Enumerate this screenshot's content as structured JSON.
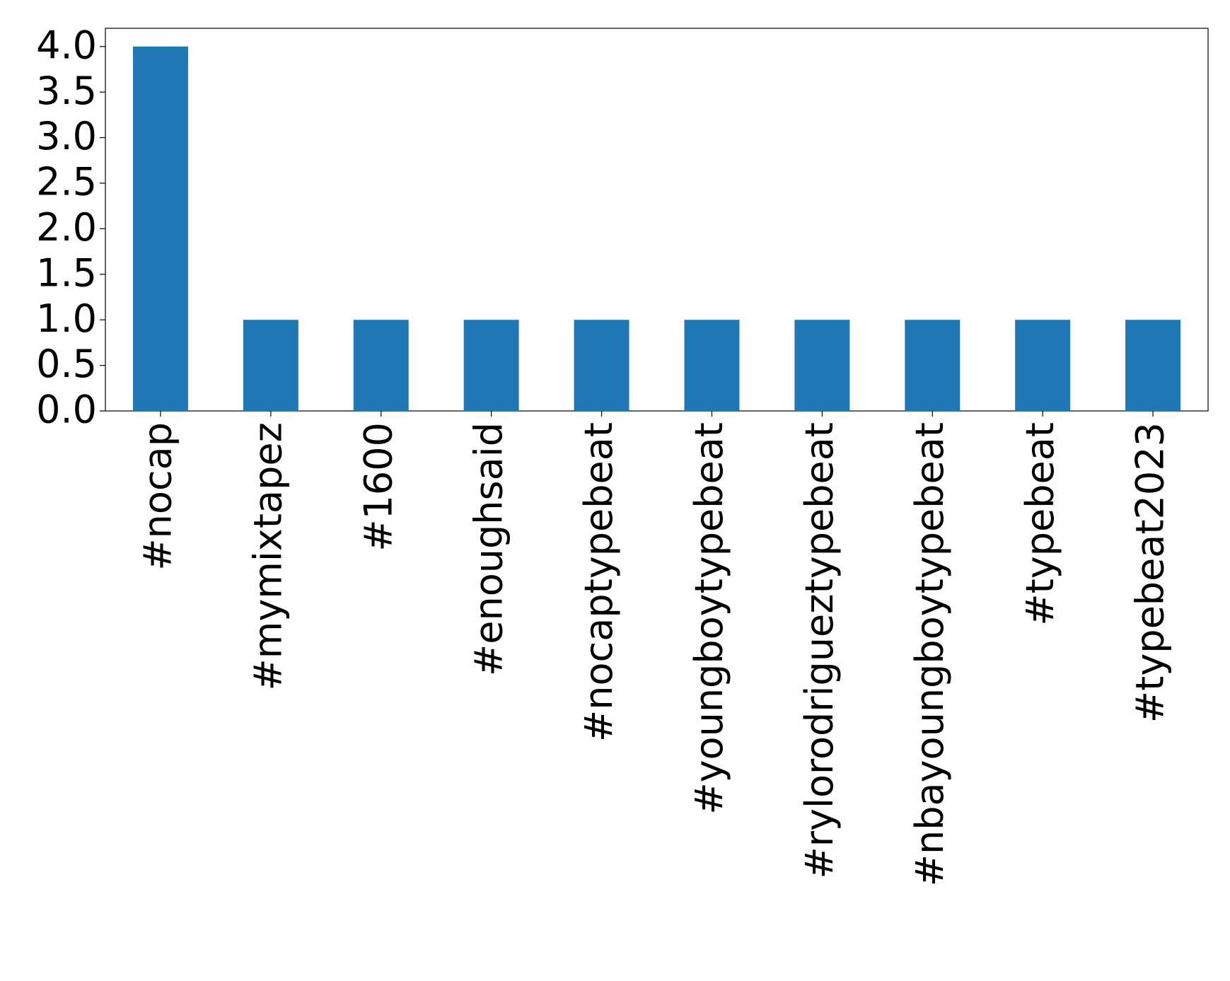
{
  "chart_data": {
    "type": "bar",
    "categories": [
      "#nocap",
      "#mymixtapez",
      "#1600",
      "#enoughsaid",
      "#nocaptypebeat",
      "#youngboytypebeat",
      "#rylorodrigueztypebeat",
      "#nbayoungboytypebeat",
      "#typebeat",
      "#typebeat2023"
    ],
    "values": [
      4,
      1,
      1,
      1,
      1,
      1,
      1,
      1,
      1,
      1
    ],
    "color": "#1f77b4",
    "ylim": [
      0,
      4.2
    ],
    "yticks": [
      {
        "value": 0,
        "label": "0.0"
      },
      {
        "value": 0.5,
        "label": "0.5"
      },
      {
        "value": 1,
        "label": "1.0"
      },
      {
        "value": 1.5,
        "label": "1.5"
      },
      {
        "value": 2,
        "label": "2.0"
      },
      {
        "value": 2.5,
        "label": "2.5"
      },
      {
        "value": 3,
        "label": "3.0"
      },
      {
        "value": 3.5,
        "label": "3.5"
      },
      {
        "value": 4,
        "label": "4.0"
      }
    ],
    "grid": false
  }
}
